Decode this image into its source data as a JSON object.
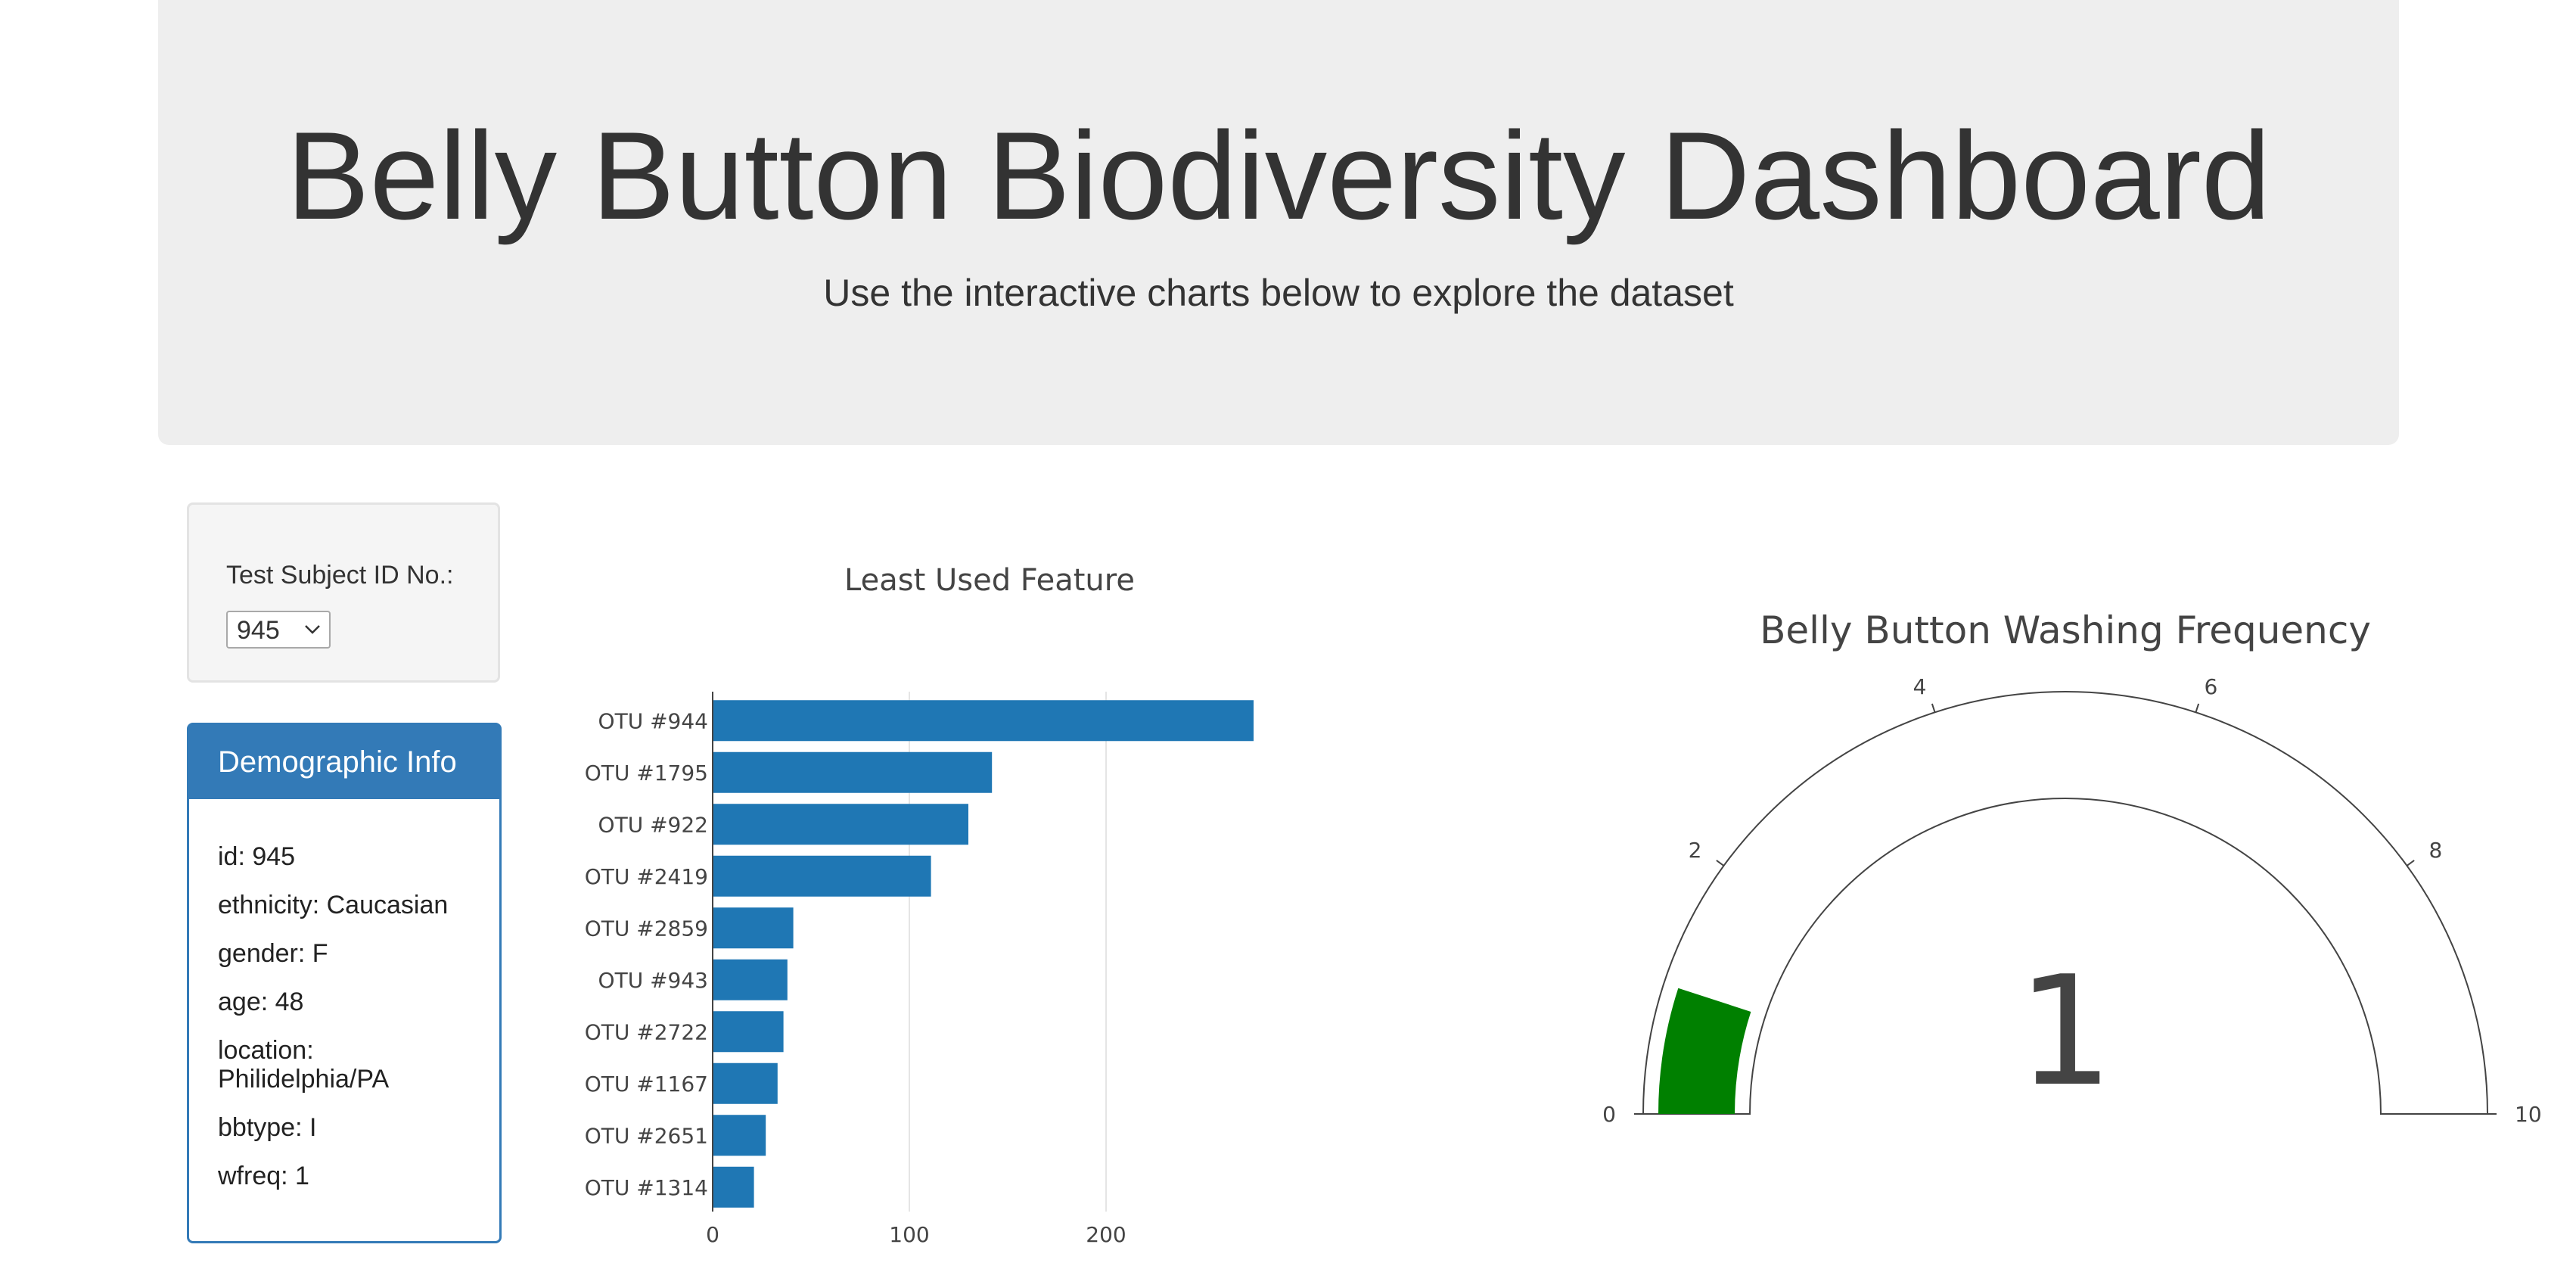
{
  "header": {
    "title": "Belly Button Biodiversity Dashboard",
    "subtitle": "Use the interactive charts below to explore the dataset"
  },
  "selector": {
    "label": "Test Subject ID No.:",
    "selected": "945"
  },
  "demographic": {
    "heading": "Demographic Info",
    "items": [
      "id: 945",
      "ethnicity: Caucasian",
      "gender: F",
      "age: 48",
      "location: Philidelphia/PA",
      "bbtype: I",
      "wfreq: 1"
    ]
  },
  "colors": {
    "bar": "#1f77b4",
    "gauge_fill": "#008000",
    "panel_primary": "#337ab7"
  },
  "chart_data": [
    {
      "type": "bar",
      "orientation": "horizontal",
      "title": "Least Used Feature",
      "categories": [
        "OTU #944",
        "OTU #1795",
        "OTU #922",
        "OTU #2419",
        "OTU #2859",
        "OTU #943",
        "OTU #2722",
        "OTU #1167",
        "OTU #2651",
        "OTU #1314"
      ],
      "values": [
        275,
        142,
        130,
        111,
        41,
        38,
        36,
        33,
        27,
        21
      ],
      "xticks": [
        0,
        100,
        200
      ],
      "xlim": [
        0,
        275
      ],
      "grid": true
    },
    {
      "type": "gauge",
      "title": "Belly Button Washing Frequency",
      "value": 1,
      "value_label": "1",
      "range": [
        0,
        10
      ],
      "ticks": [
        0,
        2,
        4,
        6,
        8,
        10
      ]
    }
  ]
}
